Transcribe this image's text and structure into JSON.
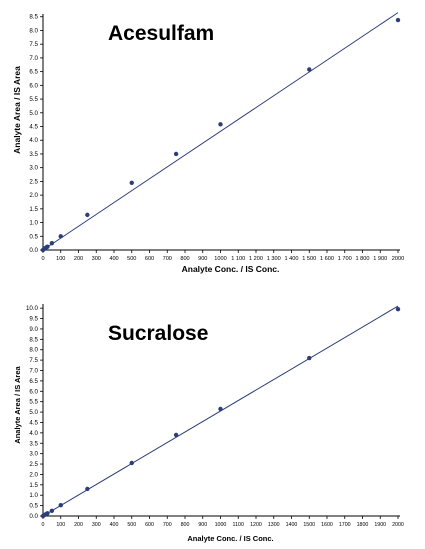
{
  "chart_data": [
    {
      "type": "scatter",
      "title": "Acesulfam",
      "xlabel": "Analyte Conc. / IS Conc.",
      "ylabel": "Analyte Area / IS Area",
      "xlim": [
        0,
        2000
      ],
      "ylim": [
        0,
        8.6
      ],
      "x_ticks": [
        0,
        100,
        200,
        300,
        400,
        500,
        600,
        700,
        800,
        900,
        1000,
        1100,
        1200,
        1300,
        1400,
        1500,
        1600,
        1700,
        1800,
        1900,
        2000
      ],
      "x_tick_labels": [
        "0",
        "100",
        "200",
        "300",
        "400",
        "500",
        "600",
        "700",
        "800",
        "900",
        "1000",
        "1 100",
        "1 200",
        "1 300",
        "1 400",
        "1 500",
        "1 600",
        "1 700",
        "1 800",
        "1 900",
        "2000"
      ],
      "y_ticks": [
        0,
        0.5,
        1,
        1.5,
        2,
        2.5,
        3,
        3.5,
        4,
        4.5,
        5,
        5.5,
        6,
        6.5,
        7,
        7.5,
        8,
        8.5
      ],
      "y_tick_labels": [
        "0.0",
        "0.5",
        "1.0",
        "1.5",
        "2.0",
        "2.5",
        "3.0",
        "3.5",
        "4.0",
        "4.5",
        "5.0",
        "5.5",
        "6.0",
        "6.5",
        "7.0",
        "7.5",
        "8.0",
        "8.5"
      ],
      "grid": false,
      "series": [
        {
          "points": [
            [
              0,
              0.0
            ],
            [
              5,
              0.03
            ],
            [
              10,
              0.06
            ],
            [
              20,
              0.1
            ],
            [
              25,
              0.12
            ],
            [
              50,
              0.25
            ],
            [
              100,
              0.5
            ],
            [
              250,
              1.28
            ],
            [
              500,
              2.45
            ],
            [
              750,
              3.5
            ],
            [
              1000,
              4.58
            ],
            [
              1500,
              6.58
            ],
            [
              2000,
              8.38
            ]
          ],
          "fit": [
            [
              0,
              0.0
            ],
            [
              2000,
              8.65
            ]
          ],
          "color": "#2c3e7a"
        }
      ]
    },
    {
      "type": "scatter",
      "title": "Sucralose",
      "xlabel": "Analyte Conc. / IS Conc.",
      "ylabel": "Analyte Area / IS Area",
      "xlim": [
        0,
        2000
      ],
      "ylim": [
        0,
        10.2
      ],
      "x_ticks": [
        0,
        100,
        200,
        300,
        400,
        500,
        600,
        700,
        800,
        900,
        1000,
        1100,
        1200,
        1300,
        1400,
        1500,
        1600,
        1700,
        1800,
        1900,
        2000
      ],
      "x_tick_labels": [
        "0",
        "100",
        "200",
        "300",
        "400",
        "500",
        "600",
        "700",
        "800",
        "900",
        "1000",
        "1100",
        "1200",
        "1300",
        "1400",
        "1500",
        "1600",
        "1700",
        "1800",
        "1900",
        "2000"
      ],
      "y_ticks": [
        0,
        0.5,
        1,
        1.5,
        2,
        2.5,
        3,
        3.5,
        4,
        4.5,
        5,
        5.5,
        6,
        6.5,
        7,
        7.5,
        8,
        8.5,
        9,
        9.5,
        10
      ],
      "y_tick_labels": [
        "0.0",
        "0.5",
        "1.0",
        "1.5",
        "2.0",
        "2.5",
        "3.0",
        "3.5",
        "4.0",
        "4.5",
        "5.0",
        "5.5",
        "6.0",
        "6.5",
        "7.0",
        "7.5",
        "8.0",
        "8.5",
        "9.0",
        "9.5",
        "10.0"
      ],
      "grid": false,
      "series": [
        {
          "points": [
            [
              0,
              0.0
            ],
            [
              5,
              0.03
            ],
            [
              10,
              0.06
            ],
            [
              20,
              0.1
            ],
            [
              25,
              0.13
            ],
            [
              50,
              0.25
            ],
            [
              100,
              0.52
            ],
            [
              250,
              1.3
            ],
            [
              500,
              2.55
            ],
            [
              750,
              3.9
            ],
            [
              1000,
              5.15
            ],
            [
              1500,
              7.6
            ],
            [
              2000,
              9.95
            ]
          ],
          "fit": [
            [
              0,
              0.0
            ],
            [
              2000,
              10.1
            ]
          ],
          "color": "#2c3e7a"
        }
      ]
    }
  ],
  "colors": {
    "axis": "#000000",
    "series": "#2c3e7a"
  }
}
